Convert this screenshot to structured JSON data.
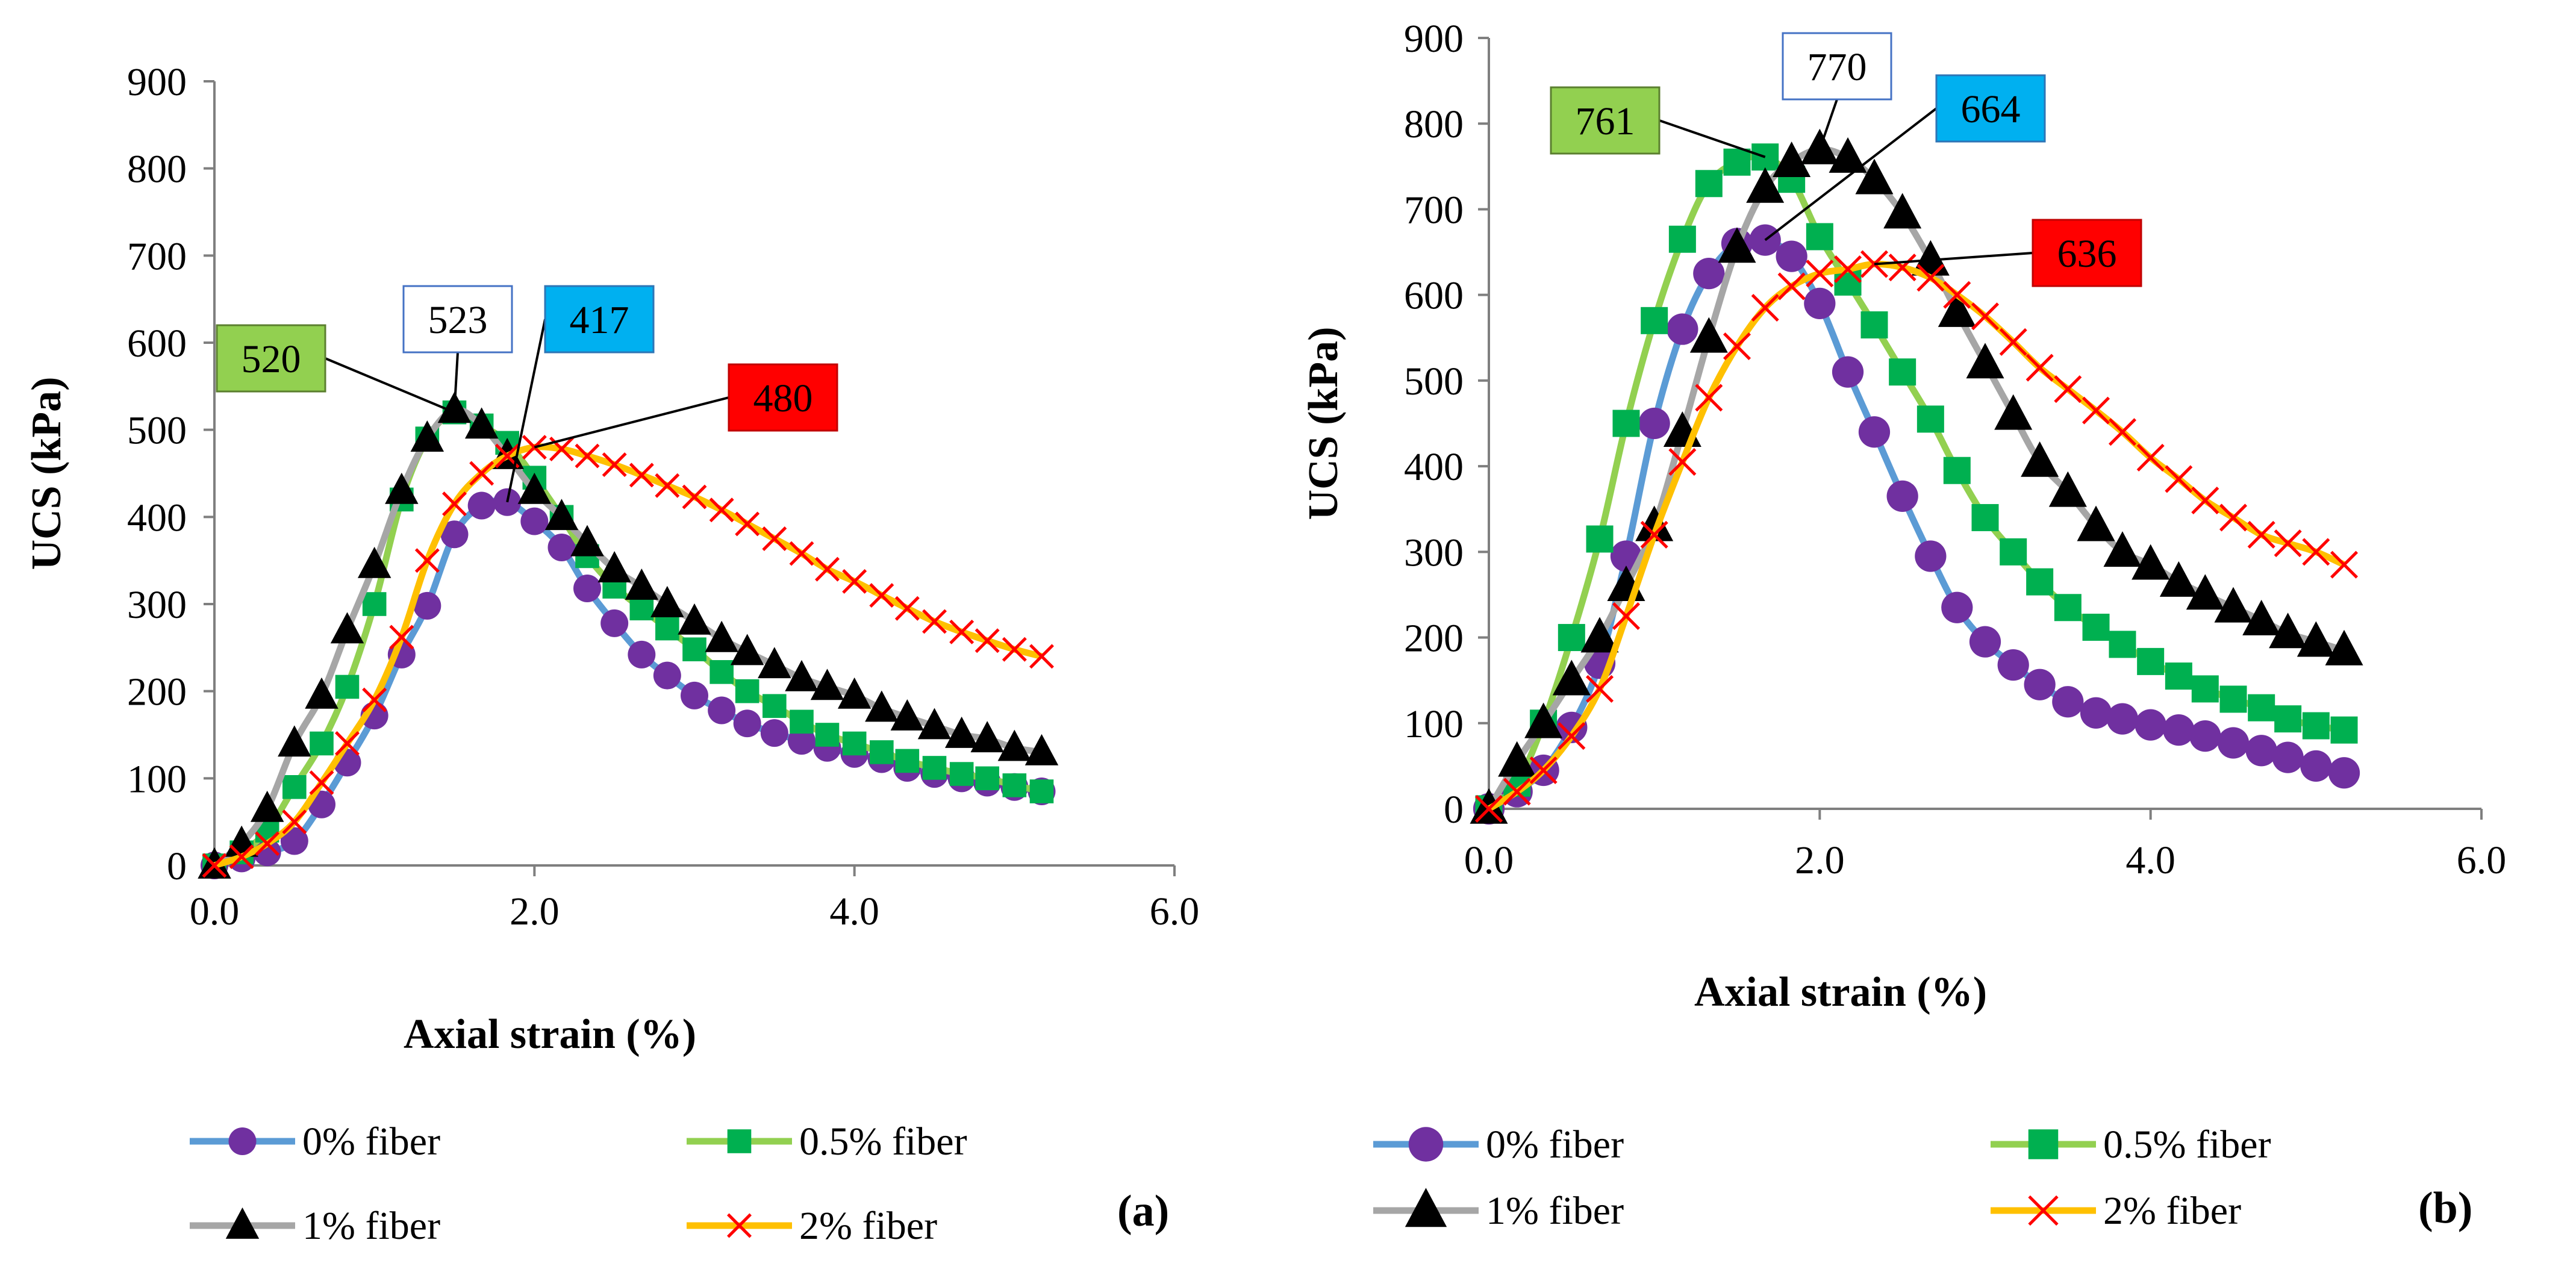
{
  "figure": {
    "panels": [
      "(a)",
      "(b)"
    ]
  },
  "chart_data": [
    {
      "panel": "(a)",
      "type": "line",
      "xlabel": "Axial strain (%)",
      "ylabel": "UCS (kPa)",
      "xlim": [
        0,
        6.0
      ],
      "ylim": [
        0,
        900
      ],
      "xticks": [
        "0.0",
        "2.0",
        "4.0",
        "6.0"
      ],
      "yticks": [
        "0",
        "100",
        "200",
        "300",
        "400",
        "500",
        "600",
        "700",
        "800",
        "900"
      ],
      "legend": [
        "0% fiber",
        "0.5% fiber",
        "1% fiber",
        "2% fiber"
      ],
      "series": [
        {
          "name": "0% fiber",
          "color": "#5B9BD5",
          "marker": "circle",
          "marker_color": "#7030A0",
          "x": [
            0,
            0.17,
            0.33,
            0.5,
            0.67,
            0.83,
            1.0,
            1.17,
            1.33,
            1.5,
            1.67,
            1.83,
            2.0,
            2.17,
            2.33,
            2.5,
            2.67,
            2.83,
            3.0,
            3.17,
            3.33,
            3.5,
            3.67,
            3.83,
            4.0,
            4.17,
            4.33,
            4.5,
            4.67,
            4.83,
            5.0,
            5.17
          ],
          "y": [
            0,
            8,
            15,
            28,
            70,
            118,
            172,
            242,
            298,
            380,
            413,
            417,
            395,
            365,
            318,
            278,
            242,
            218,
            195,
            178,
            163,
            152,
            143,
            135,
            128,
            122,
            112,
            105,
            100,
            95,
            90,
            85
          ]
        },
        {
          "name": "0.5% fiber",
          "color": "#92D050",
          "marker": "square",
          "marker_color": "#00B050",
          "x": [
            0,
            0.17,
            0.33,
            0.5,
            0.67,
            0.83,
            1.0,
            1.17,
            1.33,
            1.5,
            1.67,
            1.83,
            2.0,
            2.17,
            2.33,
            2.5,
            2.67,
            2.83,
            3.0,
            3.17,
            3.33,
            3.5,
            3.67,
            3.83,
            4.0,
            4.17,
            4.33,
            4.5,
            4.67,
            4.83,
            5.0,
            5.17
          ],
          "y": [
            0,
            15,
            40,
            90,
            140,
            205,
            300,
            420,
            490,
            520,
            505,
            485,
            445,
            400,
            355,
            320,
            295,
            272,
            248,
            222,
            200,
            183,
            165,
            150,
            140,
            130,
            120,
            112,
            105,
            100,
            92,
            85
          ]
        },
        {
          "name": "1% fiber",
          "color": "#A6A6A6",
          "marker": "triangle",
          "marker_color": "#000000",
          "x": [
            0,
            0.17,
            0.33,
            0.5,
            0.67,
            0.83,
            1.0,
            1.17,
            1.33,
            1.5,
            1.67,
            1.83,
            2.0,
            2.17,
            2.33,
            2.5,
            2.67,
            2.83,
            3.0,
            3.17,
            3.33,
            3.5,
            3.67,
            3.83,
            4.0,
            4.17,
            4.33,
            4.5,
            4.67,
            4.83,
            5.0,
            5.17
          ],
          "y": [
            0,
            25,
            65,
            140,
            195,
            270,
            345,
            430,
            490,
            523,
            505,
            470,
            430,
            400,
            370,
            340,
            320,
            300,
            280,
            260,
            245,
            230,
            215,
            205,
            195,
            180,
            170,
            160,
            150,
            145,
            135,
            130
          ]
        },
        {
          "name": "2% fiber",
          "color": "#FFC000",
          "marker": "x",
          "marker_color": "#FF0000",
          "x": [
            0,
            0.17,
            0.33,
            0.5,
            0.67,
            0.83,
            1.0,
            1.17,
            1.33,
            1.5,
            1.67,
            1.83,
            2.0,
            2.17,
            2.33,
            2.5,
            2.67,
            2.83,
            3.0,
            3.17,
            3.33,
            3.5,
            3.67,
            3.83,
            4.0,
            4.17,
            4.33,
            4.5,
            4.67,
            4.83,
            5.0,
            5.17
          ],
          "y": [
            0,
            10,
            25,
            50,
            95,
            140,
            190,
            262,
            350,
            415,
            450,
            470,
            480,
            478,
            470,
            460,
            448,
            436,
            423,
            408,
            392,
            375,
            358,
            340,
            326,
            310,
            295,
            280,
            268,
            258,
            248,
            240
          ]
        }
      ],
      "callouts": [
        {
          "text": "520",
          "style": "green",
          "series": "0.5% fiber",
          "target": [
            1.5,
            520
          ]
        },
        {
          "text": "523",
          "style": "white",
          "series": "1% fiber",
          "target": [
            1.5,
            523
          ]
        },
        {
          "text": "417",
          "style": "blue",
          "series": "0% fiber",
          "target": [
            1.83,
            417
          ]
        },
        {
          "text": "480",
          "style": "red",
          "series": "2% fiber",
          "target": [
            2.0,
            480
          ]
        }
      ]
    },
    {
      "panel": "(b)",
      "type": "line",
      "xlabel": "Axial strain (%)",
      "ylabel": "UCS (kPa)",
      "xlim": [
        0,
        6.0
      ],
      "ylim": [
        0,
        900
      ],
      "xticks": [
        "0.0",
        "2.0",
        "4.0",
        "6.0"
      ],
      "yticks": [
        "0",
        "100",
        "200",
        "300",
        "400",
        "500",
        "600",
        "700",
        "800",
        "900"
      ],
      "legend": [
        "0% fiber",
        "0.5% fiber",
        "1% fiber",
        "2% fiber"
      ],
      "series": [
        {
          "name": "0% fiber",
          "color": "#5B9BD5",
          "marker": "circle",
          "marker_color": "#7030A0",
          "x": [
            0,
            0.17,
            0.33,
            0.5,
            0.67,
            0.83,
            1.0,
            1.17,
            1.33,
            1.5,
            1.67,
            1.83,
            2.0,
            2.17,
            2.33,
            2.5,
            2.67,
            2.83,
            3.0,
            3.17,
            3.33,
            3.5,
            3.67,
            3.83,
            4.0,
            4.17,
            4.33,
            4.5,
            4.67,
            4.83,
            5.0,
            5.17
          ],
          "y": [
            0,
            20,
            45,
            95,
            170,
            295,
            450,
            560,
            625,
            660,
            664,
            645,
            590,
            510,
            440,
            365,
            295,
            235,
            195,
            168,
            145,
            125,
            112,
            105,
            98,
            92,
            85,
            77,
            68,
            60,
            50,
            42
          ]
        },
        {
          "name": "0.5% fiber",
          "color": "#92D050",
          "marker": "square",
          "marker_color": "#00B050",
          "x": [
            0,
            0.17,
            0.33,
            0.5,
            0.67,
            0.83,
            1.0,
            1.17,
            1.33,
            1.5,
            1.67,
            1.83,
            2.0,
            2.17,
            2.33,
            2.5,
            2.67,
            2.83,
            3.0,
            3.17,
            3.33,
            3.5,
            3.67,
            3.83,
            4.0,
            4.17,
            4.33,
            4.5,
            4.67,
            4.83,
            5.0,
            5.17
          ],
          "y": [
            0,
            30,
            100,
            200,
            315,
            450,
            570,
            665,
            730,
            755,
            761,
            735,
            668,
            615,
            565,
            510,
            455,
            395,
            340,
            300,
            265,
            235,
            212,
            192,
            172,
            155,
            140,
            128,
            118,
            105,
            97,
            92
          ]
        },
        {
          "name": "1% fiber",
          "color": "#A6A6A6",
          "marker": "triangle",
          "marker_color": "#000000",
          "x": [
            0,
            0.17,
            0.33,
            0.5,
            0.67,
            0.83,
            1.0,
            1.17,
            1.33,
            1.5,
            1.67,
            1.83,
            2.0,
            2.17,
            2.33,
            2.5,
            2.67,
            2.83,
            3.0,
            3.17,
            3.33,
            3.5,
            3.67,
            3.83,
            4.0,
            4.17,
            4.33,
            4.5,
            4.67,
            4.83,
            5.0,
            5.17
          ],
          "y": [
            0,
            55,
            100,
            150,
            200,
            260,
            330,
            440,
            550,
            655,
            725,
            755,
            770,
            760,
            735,
            695,
            640,
            580,
            520,
            460,
            405,
            370,
            330,
            300,
            285,
            265,
            250,
            235,
            220,
            205,
            195,
            185
          ]
        },
        {
          "name": "2% fiber",
          "color": "#FFC000",
          "marker": "x",
          "marker_color": "#FF0000",
          "x": [
            0,
            0.17,
            0.33,
            0.5,
            0.67,
            0.83,
            1.0,
            1.17,
            1.33,
            1.5,
            1.67,
            1.83,
            2.0,
            2.17,
            2.33,
            2.5,
            2.67,
            2.83,
            3.0,
            3.17,
            3.33,
            3.5,
            3.67,
            3.83,
            4.0,
            4.17,
            4.33,
            4.5,
            4.67,
            4.83,
            5.0,
            5.17
          ],
          "y": [
            0,
            20,
            45,
            85,
            140,
            225,
            320,
            405,
            480,
            540,
            585,
            610,
            625,
            630,
            636,
            632,
            620,
            600,
            575,
            545,
            515,
            490,
            465,
            440,
            410,
            385,
            360,
            340,
            320,
            310,
            300,
            285
          ]
        }
      ],
      "callouts": [
        {
          "text": "761",
          "style": "green",
          "series": "0.5% fiber",
          "target": [
            1.67,
            761
          ]
        },
        {
          "text": "770",
          "style": "white",
          "series": "1% fiber",
          "target": [
            2.0,
            770
          ]
        },
        {
          "text": "664",
          "style": "blue",
          "series": "0% fiber",
          "target": [
            1.67,
            664
          ]
        },
        {
          "text": "636",
          "style": "red",
          "series": "2% fiber",
          "target": [
            2.33,
            636
          ]
        }
      ]
    }
  ],
  "callout_styles": {
    "green": {
      "fill": "#92D050",
      "stroke": "#5B7F2F"
    },
    "white": {
      "fill": "#FFFFFF",
      "stroke": "#4472C4"
    },
    "blue": {
      "fill": "#00B0F0",
      "stroke": "#2E75B6"
    },
    "red": {
      "fill": "#FF0000",
      "stroke": "#C00000"
    }
  }
}
